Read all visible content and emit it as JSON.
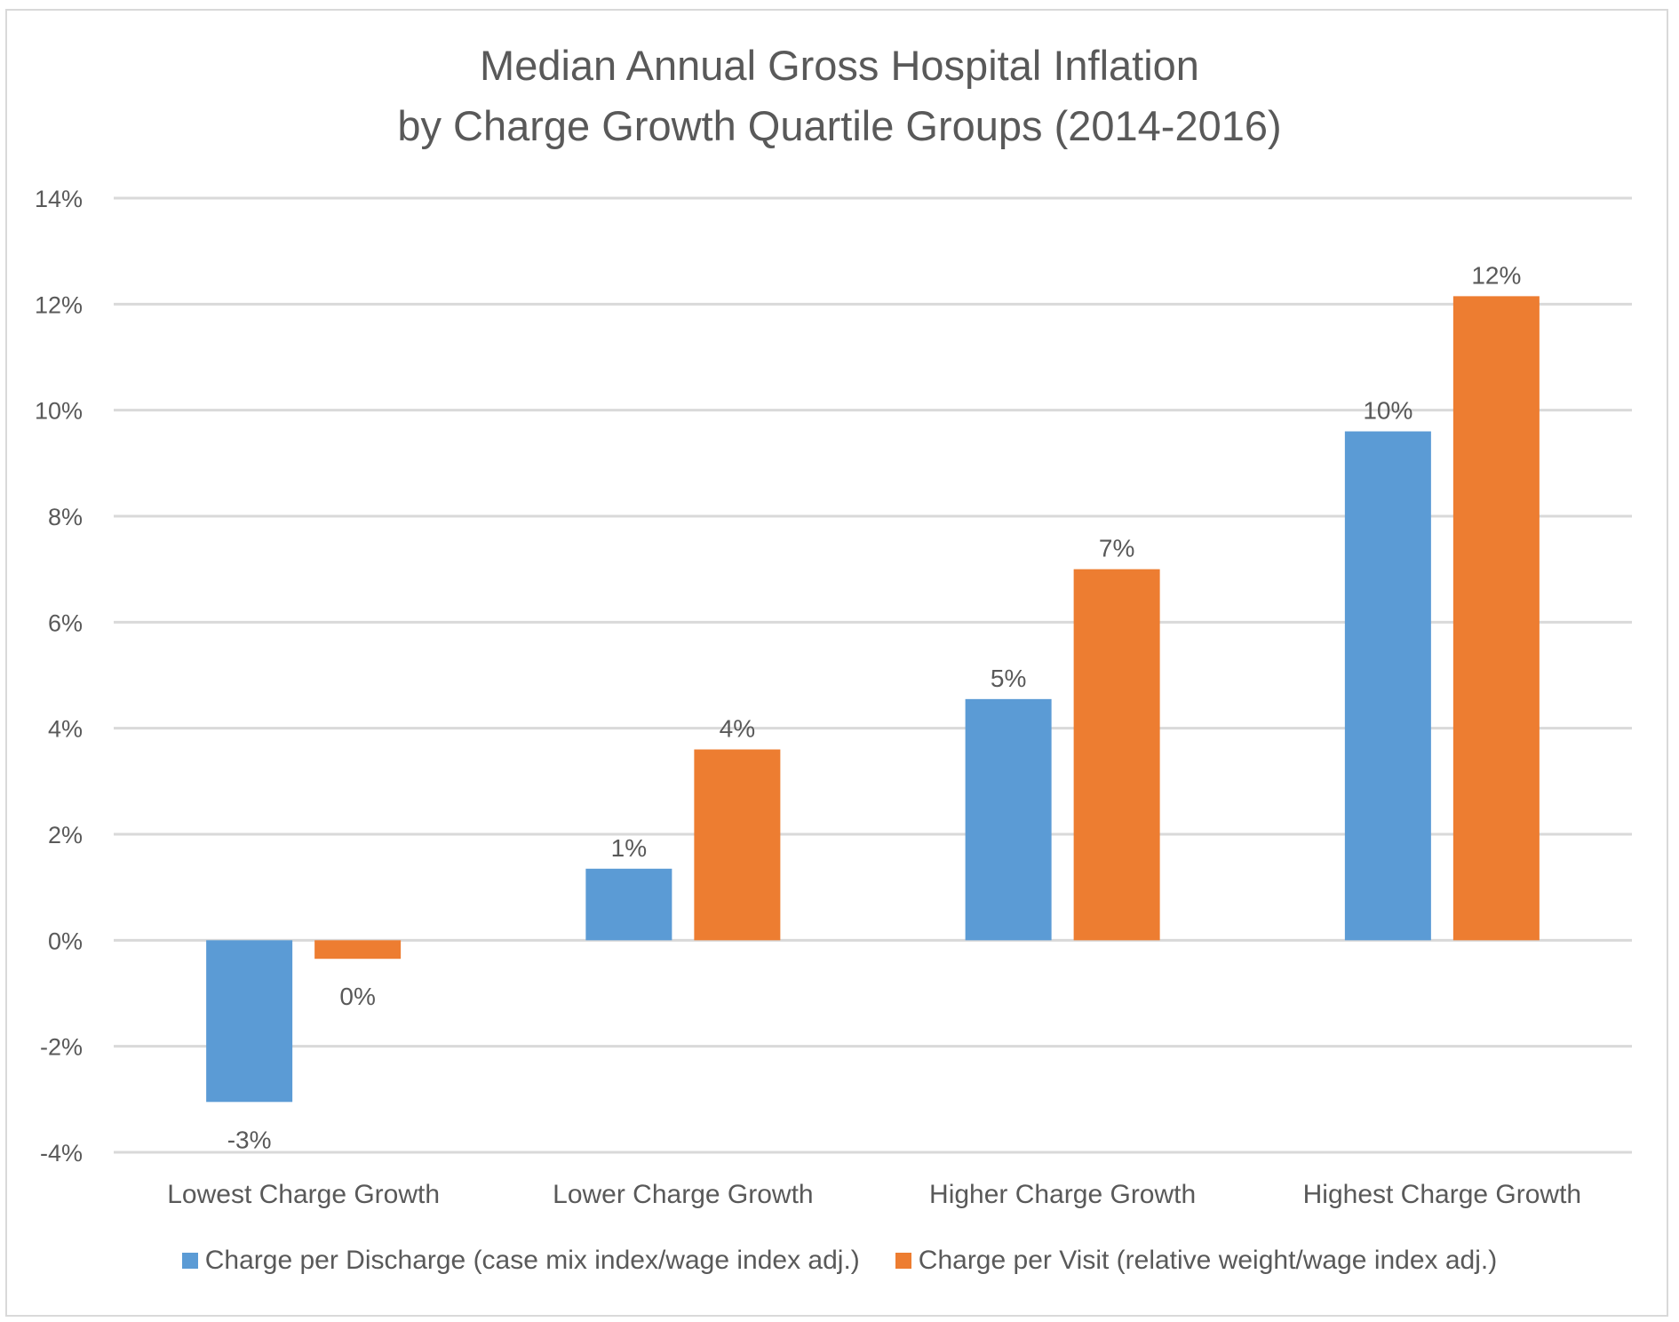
{
  "chart_data": {
    "type": "bar",
    "title": [
      "Median Annual Gross Hospital Inflation",
      "by Charge Growth Quartile Groups (2014-2016)"
    ],
    "xlabel": "",
    "ylabel": "",
    "categories": [
      "Lowest Charge Growth",
      "Lower Charge Growth",
      "Higher Charge Growth",
      "Highest Charge Growth"
    ],
    "series": [
      {
        "name": "Charge per Discharge (case mix index/wage index adj.)",
        "color": "#5b9bd5",
        "values": [
          -3.05,
          1.35,
          4.55,
          9.6
        ],
        "labels": [
          "-3%",
          "1%",
          "5%",
          "10%"
        ]
      },
      {
        "name": "Charge per Visit (relative weight/wage index adj.)",
        "color": "#ed7d31",
        "values": [
          -0.35,
          3.6,
          7.0,
          12.15
        ],
        "labels": [
          "0%",
          "4%",
          "7%",
          "12%"
        ]
      }
    ],
    "ylim": [
      -4,
      14
    ],
    "yticks": [
      -4,
      -2,
      0,
      2,
      4,
      6,
      8,
      10,
      12,
      14
    ],
    "ytick_labels": [
      "-4%",
      "-2%",
      "0%",
      "2%",
      "4%",
      "6%",
      "8%",
      "10%",
      "12%",
      "14%"
    ],
    "grid": true,
    "legend": "bottom"
  }
}
